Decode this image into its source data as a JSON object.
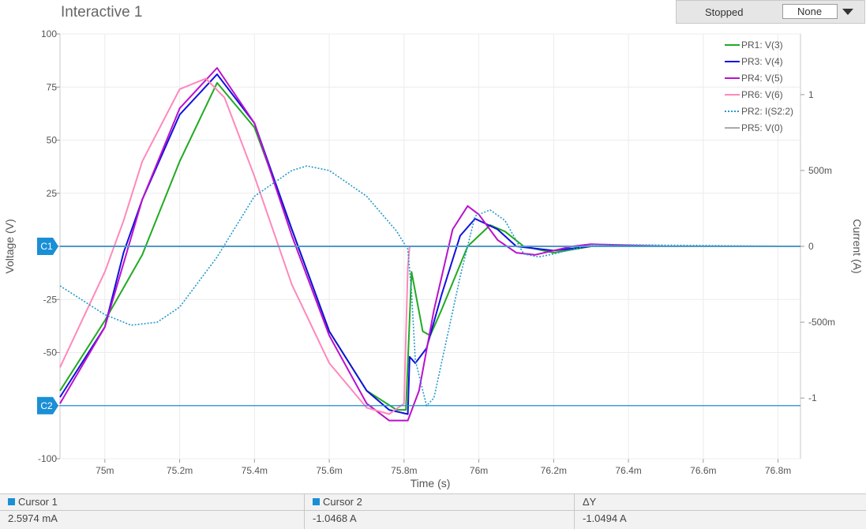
{
  "window": {
    "title": "Interactive 1"
  },
  "toolbar": {
    "status": "Stopped",
    "select_value": "None"
  },
  "chart_data": {
    "type": "line",
    "xlabel": "Time (s)",
    "ylabel_left": "Voltage (V)",
    "ylabel_right": "Current (A)",
    "xlim": [
      74.88,
      76.86
    ],
    "ylim_left": [
      -100,
      100
    ],
    "ylim_right": [
      -1.4,
      1.4
    ],
    "x_ticks": [
      75.0,
      75.2,
      75.4,
      75.6,
      75.8,
      76.0,
      76.2,
      76.4,
      76.6,
      76.8
    ],
    "x_tick_labels": [
      "75m",
      "75.2m",
      "75.4m",
      "75.6m",
      "75.8m",
      "76m",
      "76.2m",
      "76.4m",
      "76.6m",
      "76.8m"
    ],
    "y_ticks_left": [
      100,
      75,
      50,
      25,
      0,
      -25,
      -50,
      -75,
      -100
    ],
    "y_tick_labels_left": [
      "100",
      "75",
      "50",
      "25",
      "",
      "-25",
      "-50",
      "",
      "-100"
    ],
    "y_ticks_right": [
      1,
      0.5,
      0,
      -0.5,
      -1
    ],
    "y_tick_labels_right": [
      "1",
      "500m",
      "0",
      "-500m",
      "-1"
    ],
    "grid": true,
    "legend_position": "top-right",
    "cursors": [
      {
        "label": "C1",
        "value": 0
      },
      {
        "label": "C2",
        "value": -75
      }
    ],
    "series": [
      {
        "name": "PR1: V(3)",
        "color": "#22aa22",
        "axis": "left",
        "style": "solid",
        "points": [
          [
            74.88,
            -68
          ],
          [
            75.0,
            -35
          ],
          [
            75.1,
            -4
          ],
          [
            75.2,
            40
          ],
          [
            75.3,
            77
          ],
          [
            75.4,
            56
          ],
          [
            75.5,
            8
          ],
          [
            75.6,
            -40
          ],
          [
            75.7,
            -68
          ],
          [
            75.78,
            -77
          ],
          [
            75.805,
            -77
          ],
          [
            75.82,
            -12
          ],
          [
            75.85,
            -40
          ],
          [
            75.87,
            -42
          ],
          [
            75.9,
            -30
          ],
          [
            75.97,
            0
          ],
          [
            76.03,
            10
          ],
          [
            76.07,
            7
          ],
          [
            76.12,
            0
          ],
          [
            76.2,
            -3
          ],
          [
            76.3,
            0
          ],
          [
            76.5,
            0
          ],
          [
            76.86,
            0
          ]
        ]
      },
      {
        "name": "PR3: V(4)",
        "color": "#1111dd",
        "axis": "left",
        "style": "solid",
        "points": [
          [
            74.88,
            -71
          ],
          [
            75.0,
            -38
          ],
          [
            75.05,
            -3
          ],
          [
            75.1,
            22
          ],
          [
            75.2,
            62
          ],
          [
            75.3,
            81
          ],
          [
            75.4,
            58
          ],
          [
            75.5,
            8
          ],
          [
            75.6,
            -40
          ],
          [
            75.7,
            -68
          ],
          [
            75.76,
            -77
          ],
          [
            75.81,
            -79
          ],
          [
            75.815,
            -52
          ],
          [
            75.83,
            -55
          ],
          [
            75.86,
            -48
          ],
          [
            75.9,
            -23
          ],
          [
            75.95,
            5
          ],
          [
            75.99,
            13
          ],
          [
            76.05,
            8
          ],
          [
            76.1,
            0
          ],
          [
            76.2,
            -2
          ],
          [
            76.3,
            0
          ],
          [
            76.5,
            0
          ],
          [
            76.86,
            0
          ]
        ]
      },
      {
        "name": "PR4: V(5)",
        "color": "#bb11cc",
        "axis": "left",
        "style": "solid",
        "points": [
          [
            74.88,
            -74
          ],
          [
            75.0,
            -38
          ],
          [
            75.1,
            22
          ],
          [
            75.2,
            65
          ],
          [
            75.3,
            84
          ],
          [
            75.4,
            58
          ],
          [
            75.5,
            5
          ],
          [
            75.6,
            -42
          ],
          [
            75.7,
            -74
          ],
          [
            75.76,
            -82
          ],
          [
            75.81,
            -82
          ],
          [
            75.84,
            -68
          ],
          [
            75.88,
            -30
          ],
          [
            75.93,
            8
          ],
          [
            75.97,
            19
          ],
          [
            76.0,
            15
          ],
          [
            76.05,
            3
          ],
          [
            76.1,
            -3
          ],
          [
            76.15,
            -4
          ],
          [
            76.25,
            0
          ],
          [
            76.3,
            1
          ],
          [
            76.5,
            0
          ],
          [
            76.86,
            0
          ]
        ]
      },
      {
        "name": "PR6: V(6)",
        "color": "#ff88bb",
        "axis": "left",
        "style": "solid",
        "points": [
          [
            74.88,
            -57
          ],
          [
            75.0,
            -12
          ],
          [
            75.05,
            12
          ],
          [
            75.1,
            40
          ],
          [
            75.2,
            74
          ],
          [
            75.27,
            79
          ],
          [
            75.32,
            70
          ],
          [
            75.4,
            33
          ],
          [
            75.5,
            -18
          ],
          [
            75.6,
            -55
          ],
          [
            75.7,
            -76
          ],
          [
            75.76,
            -79
          ],
          [
            75.8,
            -74
          ],
          [
            75.81,
            -10
          ],
          [
            75.815,
            0
          ],
          [
            76.86,
            0
          ]
        ]
      },
      {
        "name": "PR2: I(S2:2)",
        "color": "#2299cc",
        "axis": "right",
        "style": "dotted",
        "points": [
          [
            74.88,
            -0.26
          ],
          [
            75.0,
            -0.45
          ],
          [
            75.07,
            -0.52
          ],
          [
            75.14,
            -0.5
          ],
          [
            75.2,
            -0.4
          ],
          [
            75.3,
            -0.07
          ],
          [
            75.4,
            0.33
          ],
          [
            75.5,
            0.5
          ],
          [
            75.54,
            0.53
          ],
          [
            75.6,
            0.5
          ],
          [
            75.7,
            0.33
          ],
          [
            75.78,
            0.1
          ],
          [
            75.81,
            -0.02
          ],
          [
            75.82,
            -0.3
          ],
          [
            75.83,
            -0.75
          ],
          [
            75.86,
            -1.05
          ],
          [
            75.88,
            -1.0
          ],
          [
            75.95,
            -0.2
          ],
          [
            75.99,
            0.2
          ],
          [
            76.03,
            0.24
          ],
          [
            76.07,
            0.17
          ],
          [
            76.12,
            -0.05
          ],
          [
            76.16,
            -0.07
          ],
          [
            76.2,
            -0.05
          ],
          [
            76.3,
            0.01
          ],
          [
            76.4,
            0.01
          ],
          [
            76.86,
            0
          ]
        ]
      },
      {
        "name": "PR5: V(0)",
        "color": "#aaaaaa",
        "axis": "left",
        "style": "solid",
        "points": [
          [
            74.88,
            0
          ],
          [
            76.86,
            0
          ]
        ]
      }
    ]
  },
  "cursor_panel": {
    "columns": [
      {
        "header": "Cursor 1",
        "value": "2.5974 mA"
      },
      {
        "header": "Cursor 2",
        "value": "-1.0468 A"
      },
      {
        "header": "ΔY",
        "value": "-1.0494 A"
      }
    ]
  }
}
